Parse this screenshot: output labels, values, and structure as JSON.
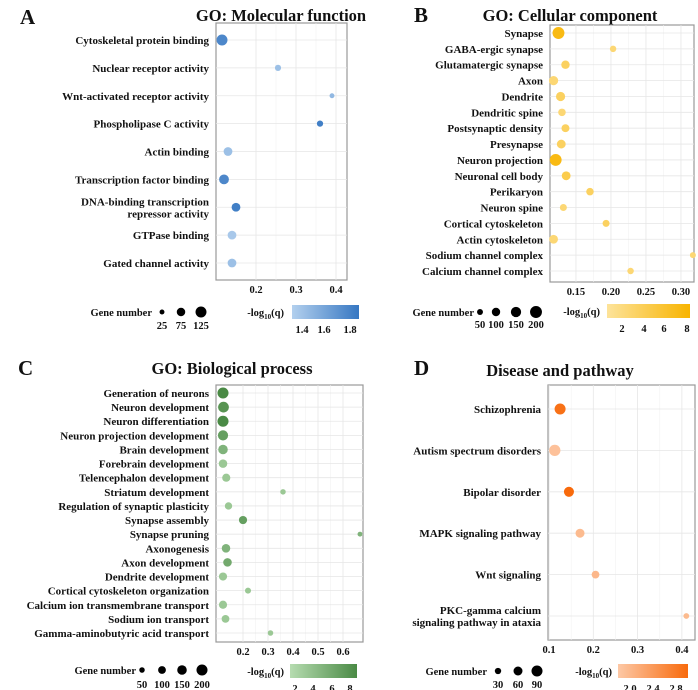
{
  "chart_data": [
    {
      "panel": "A",
      "type": "scatter",
      "title": "GO: Molecular function",
      "xlabel": "",
      "xticks": [
        "0.2",
        "0.3",
        "0.4"
      ],
      "xtick_values": [
        0.2,
        0.3,
        0.4
      ],
      "xlim": [
        0.1,
        0.4275
      ],
      "grid": true,
      "color_low": "#b3d0ee",
      "color_high": "#3677c2",
      "color_label": "-log10(q)",
      "color_range": [
        1.3,
        1.85
      ],
      "color_ticks": [
        "1.4",
        "1.6",
        "1.8"
      ],
      "size_label": "Gene number",
      "size_legend": [
        25,
        75,
        125
      ],
      "size_legend_labels": [
        "25",
        "75",
        "125"
      ],
      "categories": [
        "Cytoskeletal protein binding",
        "Nuclear receptor activity",
        "Wnt-activated receptor activity",
        "Phospholipase C activity",
        "Actin binding",
        "Transcription factor binding",
        "DNA-binding transcription\nrepressor activity",
        "GTPase binding",
        "Gated channel activity"
      ],
      "x": [
        0.115,
        0.255,
        0.39,
        0.36,
        0.13,
        0.12,
        0.15,
        0.14,
        0.14
      ],
      "color": [
        1.75,
        1.4,
        1.45,
        1.8,
        1.4,
        1.75,
        1.8,
        1.35,
        1.4
      ],
      "size": [
        125,
        40,
        25,
        40,
        80,
        100,
        80,
        80,
        80
      ]
    },
    {
      "panel": "B",
      "type": "scatter",
      "title": "GO: Cellular component",
      "xlabel": "",
      "xticks": [
        "0.15",
        "0.20",
        "0.25",
        "0.30"
      ],
      "xtick_values": [
        0.15,
        0.2,
        0.25,
        0.3
      ],
      "xlim": [
        0.1129,
        0.3186
      ],
      "grid": true,
      "color_low": "#fde39a",
      "color_high": "#f8b400",
      "color_label": "-log10(q)",
      "color_range": [
        1,
        9
      ],
      "color_ticks": [
        "2",
        "4",
        "6",
        "8"
      ],
      "size_label": "Gene number",
      "size_legend": [
        50,
        100,
        150,
        200
      ],
      "size_legend_labels": [
        "50",
        "100",
        "150",
        "200"
      ],
      "categories": [
        "Synapse",
        "GABA-ergic synapse",
        "Glutamatergic synapse",
        "Axon",
        "Dendrite",
        "Dendritic spine",
        "Postsynaptic density",
        "Presynapse",
        "Neuron projection",
        "Neuronal cell body",
        "Perikaryon",
        "Neuron spine",
        "Cortical cytoskeleton",
        "Actin cytoskeleton",
        "Sodium channel complex",
        "Calcium channel complex"
      ],
      "x": [
        0.125,
        0.203,
        0.135,
        0.118,
        0.128,
        0.13,
        0.135,
        0.129,
        0.121,
        0.136,
        0.17,
        0.132,
        0.193,
        0.118,
        0.317,
        0.228
      ],
      "color": [
        8,
        3,
        4,
        3,
        4,
        3,
        4,
        4,
        8,
        5,
        4,
        3,
        4,
        3,
        3,
        3
      ],
      "size": [
        200,
        60,
        100,
        120,
        120,
        80,
        90,
        110,
        200,
        110,
        80,
        70,
        70,
        110,
        50,
        60
      ]
    },
    {
      "panel": "C",
      "type": "scatter",
      "title": "GO: Biological process",
      "xlabel": "",
      "xticks": [
        "0.2",
        "0.3",
        "0.4",
        "0.5",
        "0.6"
      ],
      "xtick_values": [
        0.2,
        0.3,
        0.4,
        0.5,
        0.6
      ],
      "xlim": [
        0.092,
        0.68
      ],
      "grid": true,
      "color_low": "#b6dcb0",
      "color_high": "#4a8a45",
      "color_label": "-log10(q)",
      "color_range": [
        1,
        9
      ],
      "color_ticks": [
        "2",
        "4",
        "6",
        "8"
      ],
      "size_label": "Gene number",
      "size_legend": [
        50,
        100,
        150,
        200
      ],
      "size_legend_labels": [
        "50",
        "100",
        "150",
        "200"
      ],
      "categories": [
        "Generation of neurons",
        "Neuron development",
        "Neuron differentiation",
        "Neuron projection development",
        "Brain development",
        "Forebrain development",
        "Telencephalon development",
        "Striatum development",
        "Regulation of synaptic plasticity",
        "Synapse assembly",
        "Synapse pruning",
        "Axonogenesis",
        "Axon development",
        "Dendrite development",
        "Cortical cytoskeleton organization",
        "Calcium ion transmembrane transport",
        "Sodium ion transport",
        "Gamma-aminobutyric acid transport"
      ],
      "x": [
        0.12,
        0.122,
        0.12,
        0.12,
        0.12,
        0.12,
        0.133,
        0.36,
        0.142,
        0.2,
        0.668,
        0.132,
        0.138,
        0.12,
        0.22,
        0.12,
        0.13,
        0.31
      ],
      "color": [
        9,
        8,
        9,
        7,
        5,
        3,
        3,
        3,
        3,
        7,
        5,
        5,
        6,
        3,
        3,
        3,
        3,
        3
      ],
      "size": [
        200,
        190,
        200,
        170,
        150,
        120,
        110,
        50,
        90,
        110,
        40,
        120,
        120,
        110,
        60,
        110,
        100,
        50
      ]
    },
    {
      "panel": "D",
      "type": "scatter",
      "title": "Disease and pathway",
      "xlabel": "",
      "xticks": [
        "0.1",
        "0.2",
        "0.3",
        "0.4"
      ],
      "xtick_values": [
        0.1,
        0.2,
        0.3,
        0.4
      ],
      "xlim": [
        0.0977,
        0.4296
      ],
      "grid": true,
      "color_low": "#fdc8a5",
      "color_high": "#f86a0c",
      "color_label": "-log10(q)",
      "color_range": [
        1.7,
        3.1
      ],
      "color_ticks": [
        "2.0",
        "2.4",
        "2.8"
      ],
      "size_label": "Gene number",
      "size_legend": [
        30,
        60,
        90
      ],
      "size_legend_labels": [
        "30",
        "60",
        "90"
      ],
      "categories": [
        "Schizophrenia",
        "Autism spectrum disorders",
        "Bipolar disorder",
        "MAPK signaling pathway",
        "Wnt signaling",
        "PKC-gamma calcium\nsignaling pathway in ataxia"
      ],
      "x": [
        0.125,
        0.113,
        0.145,
        0.17,
        0.205,
        0.41
      ],
      "color": [
        3.0,
        1.8,
        3.1,
        1.9,
        1.95,
        1.9
      ],
      "size": [
        90,
        95,
        75,
        60,
        45,
        25
      ]
    }
  ]
}
